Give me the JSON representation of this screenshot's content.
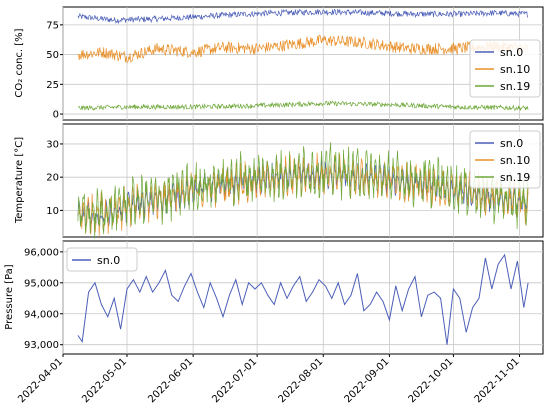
{
  "chart_data": [
    {
      "type": "line",
      "ylabel": "CO₂ conc. [%]",
      "ylim": [
        -5,
        90
      ],
      "xlim": [
        "2022-04-01",
        "2022-11-12"
      ],
      "grid": true,
      "legend_position": "right",
      "yticks": [
        "0",
        "25",
        "50",
        "75"
      ],
      "series": [
        {
          "name": "sn.0",
          "color": "#4c5fb8",
          "x": [
            "2022-04-08",
            "2022-04-25",
            "2022-05-15",
            "2022-06-05",
            "2022-06-25",
            "2022-07-10",
            "2022-08-01",
            "2022-08-25",
            "2022-09-15",
            "2022-10-05",
            "2022-10-20",
            "2022-11-05"
          ],
          "y": [
            82,
            79,
            80,
            82,
            84,
            85,
            86,
            85,
            84,
            84,
            85,
            84
          ]
        },
        {
          "name": "sn.10",
          "color": "#e8902a",
          "x": [
            "2022-04-08",
            "2022-04-20",
            "2022-05-01",
            "2022-05-15",
            "2022-06-01",
            "2022-06-15",
            "2022-07-01",
            "2022-07-15",
            "2022-08-01",
            "2022-08-20",
            "2022-09-10",
            "2022-10-01",
            "2022-10-20",
            "2022-11-05"
          ],
          "y": [
            50,
            52,
            48,
            55,
            52,
            56,
            55,
            58,
            62,
            60,
            55,
            55,
            57,
            55
          ]
        },
        {
          "name": "sn.19",
          "color": "#6fa83a",
          "x": [
            "2022-04-08",
            "2022-05-01",
            "2022-06-01",
            "2022-07-01",
            "2022-08-01",
            "2022-09-01",
            "2022-10-01",
            "2022-11-05"
          ],
          "y": [
            5,
            6,
            6,
            7,
            9,
            8,
            6,
            5
          ]
        }
      ]
    },
    {
      "type": "line",
      "ylabel": "Temperature [°C]",
      "ylim": [
        2,
        36
      ],
      "xlim": [
        "2022-04-01",
        "2022-11-12"
      ],
      "grid": true,
      "legend_position": "top-right",
      "yticks": [
        "10",
        "20",
        "30"
      ],
      "series": [
        {
          "name": "sn.0",
          "color": "#4c5fb8",
          "x": [
            "2022-04-08",
            "2022-04-20",
            "2022-05-01",
            "2022-05-15",
            "2022-06-01",
            "2022-06-15",
            "2022-07-01",
            "2022-07-15",
            "2022-08-01",
            "2022-08-15",
            "2022-09-01",
            "2022-09-15",
            "2022-10-01",
            "2022-10-15",
            "2022-11-05"
          ],
          "y": [
            8,
            8,
            11,
            13,
            16,
            18,
            19,
            20,
            21,
            20,
            19,
            18,
            16,
            14,
            12
          ]
        },
        {
          "name": "sn.10",
          "color": "#e8902a",
          "x": [
            "2022-04-08",
            "2022-05-01",
            "2022-06-01",
            "2022-07-01",
            "2022-08-01",
            "2022-09-01",
            "2022-10-01",
            "2022-11-05"
          ],
          "y": [
            8,
            11,
            16,
            19,
            21,
            19,
            16,
            12
          ]
        },
        {
          "name": "sn.19",
          "color": "#6fa83a",
          "x": [
            "2022-04-08",
            "2022-04-20",
            "2022-05-01",
            "2022-05-15",
            "2022-06-01",
            "2022-06-15",
            "2022-07-01",
            "2022-07-15",
            "2022-08-01",
            "2022-08-15",
            "2022-09-01",
            "2022-09-15",
            "2022-10-01",
            "2022-10-15",
            "2022-11-05"
          ],
          "y": [
            9,
            9,
            12,
            14,
            17,
            19,
            20,
            21,
            22,
            21,
            20,
            19,
            17,
            15,
            12
          ]
        }
      ]
    },
    {
      "type": "line",
      "ylabel": "Pressure [Pa]",
      "ylim": [
        92700,
        96350
      ],
      "xlim": [
        "2022-04-01",
        "2022-11-12"
      ],
      "grid": true,
      "legend_position": "top-left",
      "yticks": [
        "93,000",
        "94,000",
        "95,000",
        "96,000"
      ],
      "xticks": [
        "2022-04-01",
        "2022-05-01",
        "2022-06-01",
        "2022-07-01",
        "2022-08-01",
        "2022-09-01",
        "2022-10-01",
        "2022-11-01"
      ],
      "series": [
        {
          "name": "sn.0",
          "color": "#4c5fb8",
          "x": [
            "2022-04-08",
            "2022-04-10",
            "2022-04-13",
            "2022-04-16",
            "2022-04-19",
            "2022-04-22",
            "2022-04-25",
            "2022-04-28",
            "2022-05-01",
            "2022-05-04",
            "2022-05-07",
            "2022-05-10",
            "2022-05-13",
            "2022-05-16",
            "2022-05-19",
            "2022-05-22",
            "2022-05-25",
            "2022-05-28",
            "2022-05-31",
            "2022-06-03",
            "2022-06-06",
            "2022-06-09",
            "2022-06-12",
            "2022-06-15",
            "2022-06-18",
            "2022-06-21",
            "2022-06-24",
            "2022-06-27",
            "2022-06-30",
            "2022-07-03",
            "2022-07-06",
            "2022-07-09",
            "2022-07-12",
            "2022-07-15",
            "2022-07-18",
            "2022-07-21",
            "2022-07-24",
            "2022-07-27",
            "2022-07-30",
            "2022-08-02",
            "2022-08-05",
            "2022-08-08",
            "2022-08-11",
            "2022-08-14",
            "2022-08-17",
            "2022-08-20",
            "2022-08-23",
            "2022-08-26",
            "2022-08-29",
            "2022-09-01",
            "2022-09-04",
            "2022-09-07",
            "2022-09-10",
            "2022-09-13",
            "2022-09-16",
            "2022-09-19",
            "2022-09-22",
            "2022-09-25",
            "2022-09-28",
            "2022-10-01",
            "2022-10-04",
            "2022-10-07",
            "2022-10-10",
            "2022-10-13",
            "2022-10-16",
            "2022-10-19",
            "2022-10-22",
            "2022-10-25",
            "2022-10-28",
            "2022-10-31",
            "2022-11-03",
            "2022-11-05"
          ],
          "y": [
            93300,
            93100,
            94700,
            95000,
            94300,
            93900,
            94500,
            93500,
            94800,
            95100,
            94700,
            95200,
            94700,
            95000,
            95400,
            94600,
            94400,
            94900,
            95300,
            94700,
            94200,
            95000,
            94500,
            93900,
            94600,
            95100,
            94300,
            95000,
            94800,
            95000,
            94600,
            94300,
            95000,
            94500,
            94900,
            95200,
            94400,
            94700,
            95100,
            94900,
            94500,
            95000,
            94300,
            94600,
            95300,
            94100,
            94300,
            94700,
            94400,
            93800,
            94900,
            94100,
            94800,
            95200,
            93900,
            94600,
            94700,
            94500,
            93000,
            94800,
            94500,
            93400,
            94200,
            94500,
            95800,
            94800,
            95600,
            95900,
            94800,
            95700,
            94200,
            95000
          ]
        }
      ]
    }
  ]
}
